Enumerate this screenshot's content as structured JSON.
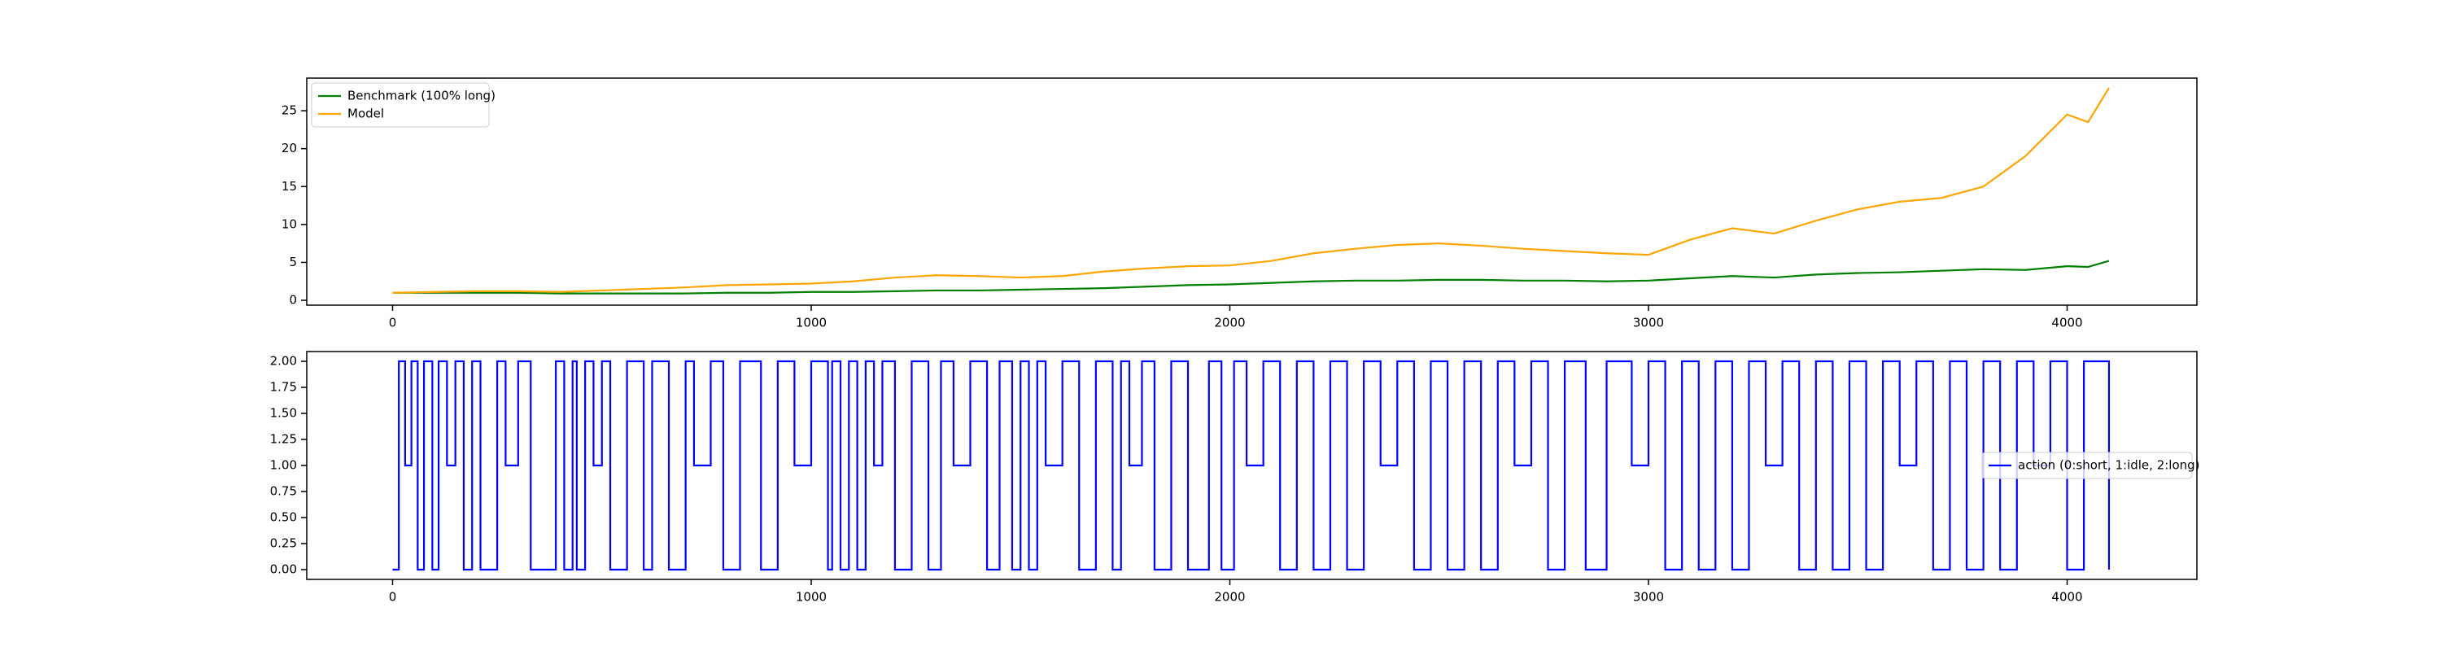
{
  "chart_data": [
    {
      "type": "line",
      "legend": "upper left",
      "x": [
        0,
        100,
        200,
        300,
        400,
        500,
        600,
        700,
        800,
        900,
        1000,
        1100,
        1200,
        1300,
        1400,
        1500,
        1600,
        1700,
        1800,
        1900,
        2000,
        2100,
        2200,
        2300,
        2400,
        2500,
        2600,
        2700,
        2800,
        2900,
        3000,
        3100,
        3200,
        3300,
        3400,
        3500,
        3600,
        3700,
        3800,
        3900,
        4000,
        4050,
        4100
      ],
      "series": [
        {
          "name": "Benchmark (100% long)",
          "color": "#008000",
          "values": [
            1.0,
            1.0,
            1.0,
            1.0,
            0.9,
            0.9,
            0.9,
            0.9,
            1.0,
            1.0,
            1.1,
            1.1,
            1.2,
            1.3,
            1.3,
            1.4,
            1.5,
            1.6,
            1.8,
            2.0,
            2.1,
            2.3,
            2.5,
            2.6,
            2.6,
            2.7,
            2.7,
            2.6,
            2.6,
            2.5,
            2.6,
            2.9,
            3.2,
            3.0,
            3.4,
            3.6,
            3.7,
            3.9,
            4.1,
            4.0,
            4.5,
            4.4,
            5.2
          ]
        },
        {
          "name": "Model",
          "color": "#ffa500",
          "values": [
            1.0,
            1.1,
            1.2,
            1.2,
            1.1,
            1.3,
            1.5,
            1.7,
            2.0,
            2.1,
            2.2,
            2.5,
            3.0,
            3.3,
            3.2,
            3.0,
            3.2,
            3.8,
            4.2,
            4.5,
            4.6,
            5.2,
            6.2,
            6.8,
            7.3,
            7.5,
            7.2,
            6.8,
            6.5,
            6.2,
            6.0,
            8.0,
            9.5,
            8.8,
            10.5,
            12.0,
            13.0,
            13.5,
            15.0,
            19.0,
            24.5,
            23.5,
            28.0
          ]
        }
      ],
      "xlim": [
        -205,
        4310
      ],
      "xticks": [
        0,
        1000,
        2000,
        3000,
        4000
      ],
      "ylim": [
        -0.64,
        29.3
      ],
      "yticks": [
        0,
        5,
        10,
        15,
        20,
        25
      ]
    },
    {
      "type": "step",
      "legend": "center right",
      "x": [
        0,
        15,
        30,
        45,
        60,
        75,
        95,
        110,
        130,
        150,
        170,
        190,
        210,
        250,
        270,
        300,
        330,
        390,
        410,
        430,
        440,
        460,
        480,
        500,
        520,
        560,
        600,
        620,
        660,
        700,
        720,
        760,
        790,
        830,
        880,
        920,
        960,
        1000,
        1040,
        1050,
        1070,
        1090,
        1110,
        1130,
        1150,
        1170,
        1200,
        1240,
        1280,
        1310,
        1340,
        1380,
        1420,
        1450,
        1480,
        1500,
        1520,
        1540,
        1560,
        1600,
        1640,
        1680,
        1720,
        1740,
        1760,
        1790,
        1820,
        1860,
        1900,
        1950,
        1980,
        2010,
        2040,
        2080,
        2120,
        2160,
        2200,
        2240,
        2280,
        2320,
        2360,
        2400,
        2440,
        2480,
        2520,
        2560,
        2600,
        2640,
        2680,
        2720,
        2760,
        2800,
        2850,
        2900,
        2960,
        3000,
        3040,
        3080,
        3120,
        3160,
        3200,
        3240,
        3280,
        3320,
        3360,
        3400,
        3440,
        3480,
        3520,
        3560,
        3600,
        3640,
        3680,
        3720,
        3760,
        3800,
        3840,
        3880,
        3920,
        3960,
        4000,
        4040,
        4080,
        4100
      ],
      "series": [
        {
          "name": "action (0:short, 1:idle, 2:long)",
          "color": "#0000ff",
          "values": [
            0,
            2,
            1,
            2,
            0,
            2,
            0,
            2,
            1,
            2,
            0,
            2,
            0,
            2,
            1,
            2,
            0,
            2,
            0,
            2,
            0,
            2,
            1,
            2,
            0,
            2,
            0,
            2,
            0,
            2,
            1,
            2,
            0,
            2,
            0,
            2,
            1,
            2,
            0,
            2,
            0,
            2,
            0,
            2,
            1,
            2,
            0,
            2,
            0,
            2,
            1,
            2,
            0,
            2,
            0,
            2,
            0,
            2,
            1,
            2,
            0,
            2,
            0,
            2,
            1,
            2,
            0,
            2,
            0,
            2,
            0,
            2,
            1,
            2,
            0,
            2,
            0,
            2,
            0,
            2,
            1,
            2,
            0,
            2,
            0,
            2,
            0,
            2,
            1,
            2,
            0,
            2,
            0,
            2,
            1,
            2,
            0,
            2,
            0,
            2,
            0,
            2,
            1,
            2,
            0,
            2,
            0,
            2,
            0,
            2,
            1,
            2,
            0,
            2,
            0,
            2,
            0,
            2,
            1,
            2,
            0,
            2,
            2,
            0
          ]
        }
      ],
      "xlim": [
        -205,
        4310
      ],
      "xticks": [
        0,
        1000,
        2000,
        3000,
        4000
      ],
      "ylim": [
        -0.094,
        2.094
      ],
      "yticks": [
        {
          "value": 0,
          "label": "0.00"
        },
        {
          "value": 0.25,
          "label": "0.25"
        },
        {
          "value": 0.5,
          "label": "0.50"
        },
        {
          "value": 0.75,
          "label": "0.75"
        },
        {
          "value": 1,
          "label": "1.00"
        },
        {
          "value": 1.25,
          "label": "1.25"
        },
        {
          "value": 1.5,
          "label": "1.50"
        },
        {
          "value": 1.75,
          "label": "1.75"
        },
        {
          "value": 2,
          "label": "2.00"
        }
      ]
    }
  ]
}
